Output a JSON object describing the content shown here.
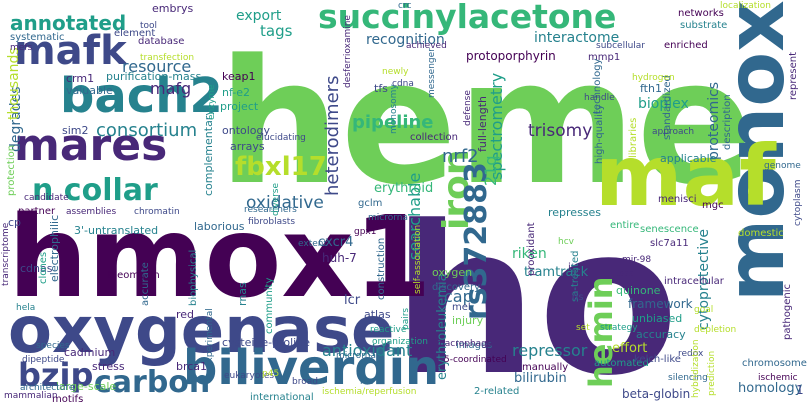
{
  "word_cloud": {
    "palette": [
      "#440154",
      "#482878",
      "#3e4989",
      "#31688e",
      "#26828e",
      "#1f9e89",
      "#35b779",
      "#6ece58",
      "#b5de2b",
      "#fde725"
    ],
    "words": [
      {
        "text": "heme",
        "color": "#6ece58"
      },
      {
        "text": "ho",
        "color": "#482878"
      },
      {
        "text": "hmox1",
        "color": "#440154"
      },
      {
        "text": "oxygenase",
        "color": "#3e4989"
      },
      {
        "text": "monoxide",
        "color": "#31688e"
      },
      {
        "text": "maf",
        "color": "#b5de2b"
      },
      {
        "text": "biliverdin",
        "color": "#31688e"
      },
      {
        "text": "succinylacetone",
        "color": "#35b779"
      },
      {
        "text": "bach2",
        "color": "#26828e"
      },
      {
        "text": "mafk",
        "color": "#3e4989"
      },
      {
        "text": "mares",
        "color": "#482878"
      },
      {
        "text": "n collar",
        "color": "#1f9e89"
      },
      {
        "text": "hemin",
        "color": "#6ece58"
      },
      {
        "text": "iron",
        "color": "#6ece58"
      },
      {
        "text": "rs372883",
        "color": "#31688e"
      },
      {
        "text": "fbxl17",
        "color": "#b5de2b"
      },
      {
        "text": "carbon",
        "color": "#31688e"
      },
      {
        "text": "bzip",
        "color": "#3e4989"
      },
      {
        "text": "annotated",
        "color": "#1f9e89"
      },
      {
        "text": "consortium",
        "color": "#26828e"
      },
      {
        "text": "resource",
        "color": "#31688e"
      },
      {
        "text": "mafg",
        "color": "#482878"
      },
      {
        "text": "export",
        "color": "#1f9e89"
      },
      {
        "text": "tags",
        "color": "#1f9e89"
      },
      {
        "text": "recognition",
        "color": "#31688e"
      },
      {
        "text": "protoporphyrin",
        "color": "#440154"
      },
      {
        "text": "interactome",
        "color": "#26828e"
      },
      {
        "text": "pipeline",
        "color": "#35b779"
      },
      {
        "text": "trisomy",
        "color": "#482878"
      },
      {
        "text": "heterodimers",
        "color": "#3e4989"
      },
      {
        "text": "spectrometry",
        "color": "#1f9e89"
      },
      {
        "text": "proteomics",
        "color": "#31688e"
      },
      {
        "text": "bioplex",
        "color": "#1f9e89"
      },
      {
        "text": "cytoprotective",
        "color": "#26828e"
      },
      {
        "text": "nrf2",
        "color": "#31688e"
      },
      {
        "text": "antioxidant",
        "color": "#26828e"
      },
      {
        "text": "searchable",
        "color": "#1f9e89"
      },
      {
        "text": "oxidative",
        "color": "#31688e"
      },
      {
        "text": "cap",
        "color": "#31688e"
      },
      {
        "text": "repressor",
        "color": "#26828e"
      },
      {
        "text": "21q",
        "color": "#35b779"
      },
      {
        "text": "riken",
        "color": "#35b779"
      },
      {
        "text": "tramtrack",
        "color": "#26828e"
      },
      {
        "text": "cxcr4",
        "color": "#31688e"
      },
      {
        "text": "huh-7",
        "color": "#482878"
      },
      {
        "text": "lcr",
        "color": "#3e4989"
      },
      {
        "text": "bilirubin",
        "color": "#31688e"
      },
      {
        "text": "homology",
        "color": "#31688e"
      },
      {
        "text": "beta-globin",
        "color": "#3e4989"
      },
      {
        "text": "erythroleukemia",
        "color": "#26828e"
      },
      {
        "text": "erythroid",
        "color": "#35b779"
      },
      {
        "text": "degrades",
        "color": "#31688e"
      },
      {
        "text": "thousands",
        "color": "#b5de2b"
      },
      {
        "text": "sim2",
        "color": "#3e4989"
      },
      {
        "text": "crm1",
        "color": "#482878"
      },
      {
        "text": "embrys",
        "color": "#482878"
      },
      {
        "text": "valuable",
        "color": "#31688e"
      },
      {
        "text": "purification-mass",
        "color": "#26828e"
      },
      {
        "text": "database",
        "color": "#482878"
      },
      {
        "text": "keap1",
        "color": "#440154"
      },
      {
        "text": "nf-e2",
        "color": "#1f9e89"
      },
      {
        "text": "project",
        "color": "#1f9e89"
      },
      {
        "text": "ontology",
        "color": "#3e4989"
      },
      {
        "text": "arrays",
        "color": "#3e4989"
      },
      {
        "text": "complementary",
        "color": "#26828e"
      },
      {
        "text": "systematic",
        "color": "#31688e"
      },
      {
        "text": "protection",
        "color": "#6ece58"
      },
      {
        "text": "element",
        "color": "#3e4989"
      },
      {
        "text": "partner",
        "color": "#440154"
      },
      {
        "text": "3'-untranslated",
        "color": "#26828e"
      },
      {
        "text": "laborious",
        "color": "#31688e"
      },
      {
        "text": "electrophilic",
        "color": "#31688e"
      },
      {
        "text": "cdnas",
        "color": "#3e4989"
      },
      {
        "text": "clones",
        "color": "#1f9e89"
      },
      {
        "text": "bleomycin",
        "color": "#440154"
      },
      {
        "text": "biophysical",
        "color": "#26828e"
      },
      {
        "text": "accurate",
        "color": "#31688e"
      },
      {
        "text": "red",
        "color": "#482878"
      },
      {
        "text": "rnas",
        "color": "#26828e"
      },
      {
        "text": "community",
        "color": "#1f9e89"
      },
      {
        "text": "cadmium",
        "color": "#482878"
      },
      {
        "text": "stress",
        "color": "#482878"
      },
      {
        "text": "large-scale",
        "color": "#6ece58"
      },
      {
        "text": "motifs",
        "color": "#440154"
      },
      {
        "text": "cysteine-proline",
        "color": "#3e4989"
      },
      {
        "text": "brca1",
        "color": "#482878"
      },
      {
        "text": "international",
        "color": "#26828e"
      },
      {
        "text": "atlas",
        "color": "#3e4989"
      },
      {
        "text": "construction",
        "color": "#31688e"
      },
      {
        "text": "discovery",
        "color": "#31688e"
      },
      {
        "text": "oxygen",
        "color": "#6ece58"
      },
      {
        "text": "mel",
        "color": "#3e4989"
      },
      {
        "text": "injury",
        "color": "#6ece58"
      },
      {
        "text": "images",
        "color": "#31688e"
      },
      {
        "text": "2-related",
        "color": "#26828e"
      },
      {
        "text": "manually",
        "color": "#440154"
      },
      {
        "text": "automated",
        "color": "#1f9e89"
      },
      {
        "text": "effort",
        "color": "#b5de2b"
      },
      {
        "text": "kelch-like",
        "color": "#3e4989"
      },
      {
        "text": "accuracy",
        "color": "#26828e"
      },
      {
        "text": "unbiased",
        "color": "#1f9e89"
      },
      {
        "text": "framework",
        "color": "#31688e"
      },
      {
        "text": "quinone",
        "color": "#35b779"
      },
      {
        "text": "represses",
        "color": "#26828e"
      },
      {
        "text": "entire",
        "color": "#35b779"
      },
      {
        "text": "senescence",
        "color": "#35b779"
      },
      {
        "text": "slc7a11",
        "color": "#482878"
      },
      {
        "text": "menisci",
        "color": "#482878"
      },
      {
        "text": "mgc",
        "color": "#440154"
      },
      {
        "text": "applicable",
        "color": "#26828e"
      },
      {
        "text": "description",
        "color": "#31688e"
      },
      {
        "text": "fth1",
        "color": "#31688e"
      },
      {
        "text": "mmp1",
        "color": "#482878"
      },
      {
        "text": "networks",
        "color": "#440154"
      },
      {
        "text": "substrate",
        "color": "#26828e"
      },
      {
        "text": "enriched",
        "color": "#440154"
      },
      {
        "text": "technology",
        "color": "#31688e"
      },
      {
        "text": "high-quality",
        "color": "#31688e"
      },
      {
        "text": "full-length",
        "color": "#482878"
      },
      {
        "text": "collection",
        "color": "#482878"
      },
      {
        "text": "gclm",
        "color": "#31688e"
      },
      {
        "text": "tfs",
        "color": "#3e4989"
      },
      {
        "text": "prooxidant",
        "color": "#482878"
      },
      {
        "text": "chromosome",
        "color": "#31688e"
      },
      {
        "text": "libraries",
        "color": "#b5de2b"
      },
      {
        "text": "intracellular",
        "color": "#482878"
      },
      {
        "text": "standardized",
        "color": "#31688e"
      },
      {
        "text": "ix",
        "color": "#482878"
      },
      {
        "text": "domestic",
        "color": "#b5de2b"
      },
      {
        "text": "hydrogen",
        "color": "#b5de2b"
      },
      {
        "text": "subcellular",
        "color": "#3e4989"
      },
      {
        "text": "handle",
        "color": "#3e4989"
      },
      {
        "text": "represent",
        "color": "#482878"
      },
      {
        "text": "cytoplasm",
        "color": "#3e4989"
      },
      {
        "text": "pathogenic",
        "color": "#482878"
      },
      {
        "text": "ischemic",
        "color": "#440154"
      },
      {
        "text": "silencing",
        "color": "#31688e"
      },
      {
        "text": "redox",
        "color": "#3e4989"
      },
      {
        "text": "approach",
        "color": "#3e4989"
      },
      {
        "text": "localization",
        "color": "#b5de2b"
      },
      {
        "text": "newly",
        "color": "#b5de2b"
      },
      {
        "text": "cdna",
        "color": "#3e4989"
      },
      {
        "text": "achieved",
        "color": "#482878"
      },
      {
        "text": "desferrioxamine",
        "color": "#482878"
      },
      {
        "text": "genome",
        "color": "#31688e"
      },
      {
        "text": "transcriptome",
        "color": "#482878"
      },
      {
        "text": "candidate",
        "color": "#482878"
      },
      {
        "text": "assemblies",
        "color": "#482878"
      },
      {
        "text": "chromatin",
        "color": "#3e4989"
      },
      {
        "text": "hela",
        "color": "#26828e"
      },
      {
        "text": "species",
        "color": "#31688e"
      },
      {
        "text": "dipeptide",
        "color": "#3e4989"
      },
      {
        "text": "architecture",
        "color": "#31688e"
      },
      {
        "text": "mammalian",
        "color": "#482878"
      },
      {
        "text": "microrna",
        "color": "#31688e"
      },
      {
        "text": "micrornas",
        "color": "#31688e"
      },
      {
        "text": "eukaryotes",
        "color": "#3e4989"
      },
      {
        "text": "ischemia/reperfusion",
        "color": "#b5de2b"
      },
      {
        "text": "experimental",
        "color": "#31688e"
      },
      {
        "text": "broad",
        "color": "#3e4989"
      },
      {
        "text": "p45",
        "color": "#b5de2b"
      },
      {
        "text": "ros",
        "color": "#31688e"
      },
      {
        "text": "organization",
        "color": "#1f9e89"
      },
      {
        "text": "reactive",
        "color": "#1f9e89"
      },
      {
        "text": "5-coordinated",
        "color": "#440154"
      },
      {
        "text": "self-association",
        "color": "#b5de2b"
      },
      {
        "text": "transfection",
        "color": "#b5de2b"
      },
      {
        "text": "mefs",
        "color": "#482878"
      },
      {
        "text": "fibroblasts",
        "color": "#3e4989"
      },
      {
        "text": "researchers",
        "color": "#31688e"
      },
      {
        "text": "defense",
        "color": "#482878"
      },
      {
        "text": "messenger",
        "color": "#31688e"
      },
      {
        "text": "enzyme",
        "color": "#1f9e89"
      },
      {
        "text": "tool",
        "color": "#3e4989"
      },
      {
        "text": "elucidating",
        "color": "#3e4989"
      },
      {
        "text": "diverse",
        "color": "#1f9e89"
      },
      {
        "text": "extent",
        "color": "#31688e"
      },
      {
        "text": "mir-98",
        "color": "#482878"
      },
      {
        "text": "sa-treated",
        "color": "#26828e"
      },
      {
        "text": "ds",
        "color": "#3e4989"
      },
      {
        "text": "tsss",
        "color": "#482878"
      },
      {
        "text": "goal",
        "color": "#b5de2b"
      },
      {
        "text": "set",
        "color": "#b5de2b"
      },
      {
        "text": "strategy",
        "color": "#1f9e89"
      },
      {
        "text": "depletion",
        "color": "#b5de2b"
      },
      {
        "text": "macrophage",
        "color": "#482878"
      },
      {
        "text": "pairs",
        "color": "#1f9e89"
      },
      {
        "text": "crc",
        "color": "#31688e"
      },
      {
        "text": "hcv",
        "color": "#6ece58"
      },
      {
        "text": "monosomy",
        "color": "#26828e"
      },
      {
        "text": "prediction",
        "color": "#b5de2b"
      },
      {
        "text": "hybridization",
        "color": "#b5de2b"
      },
      {
        "text": "gpx1",
        "color": "#440154"
      },
      {
        "text": "cp",
        "color": "#3e4989"
      },
      {
        "text": "1",
        "color": "#3e4989"
      }
    ]
  }
}
